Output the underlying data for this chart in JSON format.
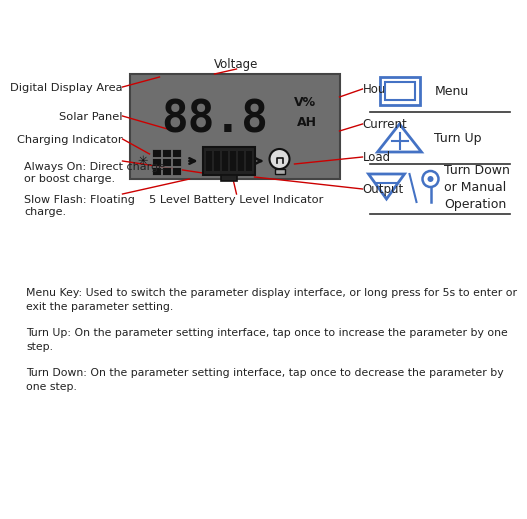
{
  "bg_color": "#ffffff",
  "lcd_color": "#6e6e6e",
  "digit_text": "88.8",
  "label_voltage": "Voltage",
  "label_hour": "Hour",
  "label_current": "Current",
  "label_load": "Load",
  "label_output": "Output",
  "label_digital": "Digital Display Area",
  "label_solar": "Solar Panel",
  "label_charging": "Charging Indicator",
  "label_always": "Always On: Direct charge\nor boost charge.",
  "label_slow": "Slow Flash: Floating\ncharge.",
  "label_battery": "5 Level Battery Level Indicator",
  "menu_text": "Menu",
  "turnup_text": "Turn Up",
  "turndown_text": "Turn Down\nor Manual\nOperation",
  "desc_menu": "Menu Key: Used to switch the parameter display interface, or long press for 5s to enter or\nexit the parameter setting.",
  "desc_turnup": "Turn Up: On the parameter setting interface, tap once to increase the parameter by one\nstep.",
  "desc_turndown": "Turn Down: On the parameter setting interface, tap once to decrease the parameter by\none step.",
  "red_color": "#cc0000",
  "blue_color": "#4472c4",
  "text_color": "#222222",
  "font_size_main": 8.5,
  "font_size_small": 7.5
}
